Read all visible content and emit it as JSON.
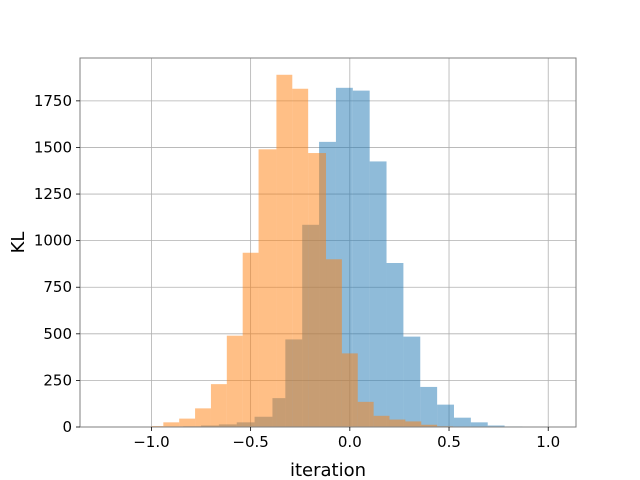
{
  "chart_data": {
    "type": "bar",
    "title": "",
    "xlabel": "iteration",
    "ylabel": "KL",
    "xlim": [
      -1.36,
      1.14
    ],
    "ylim": [
      0,
      1980
    ],
    "xticks": [
      -1.0,
      -0.5,
      0.0,
      0.5,
      1.0
    ],
    "xtick_labels": [
      "−1.0",
      "−0.5",
      "0.0",
      "0.5",
      "1.0"
    ],
    "yticks": [
      0,
      250,
      500,
      750,
      1000,
      1250,
      1500,
      1750
    ],
    "ytick_labels": [
      "0",
      "250",
      "500",
      "750",
      "1000",
      "1250",
      "1500",
      "1750"
    ],
    "grid": true,
    "alpha": 0.5,
    "series": [
      {
        "color": "#1f77b4",
        "bins": [
          {
            "x0": -1.2,
            "x1": -1.11,
            "count": 1
          },
          {
            "x0": -1.11,
            "x1": -1.02,
            "count": 1
          },
          {
            "x0": -1.02,
            "x1": -0.93,
            "count": 2
          },
          {
            "x0": -0.93,
            "x1": -0.84,
            "count": 3
          },
          {
            "x0": -0.84,
            "x1": -0.75,
            "count": 4
          },
          {
            "x0": -0.75,
            "x1": -0.66,
            "count": 8
          },
          {
            "x0": -0.66,
            "x1": -0.57,
            "count": 14
          },
          {
            "x0": -0.57,
            "x1": -0.48,
            "count": 25
          },
          {
            "x0": -0.48,
            "x1": -0.39,
            "count": 55
          },
          {
            "x0": -0.39,
            "x1": -0.325,
            "count": 155
          },
          {
            "x0": -0.325,
            "x1": -0.24,
            "count": 470
          },
          {
            "x0": -0.24,
            "x1": -0.155,
            "count": 1085
          },
          {
            "x0": -0.155,
            "x1": -0.07,
            "count": 1530
          },
          {
            "x0": -0.07,
            "x1": 0.015,
            "count": 1820
          },
          {
            "x0": 0.015,
            "x1": 0.1,
            "count": 1805
          },
          {
            "x0": 0.1,
            "x1": 0.185,
            "count": 1425
          },
          {
            "x0": 0.185,
            "x1": 0.27,
            "count": 880
          },
          {
            "x0": 0.27,
            "x1": 0.355,
            "count": 485
          },
          {
            "x0": 0.355,
            "x1": 0.44,
            "count": 215
          },
          {
            "x0": 0.44,
            "x1": 0.525,
            "count": 120
          },
          {
            "x0": 0.525,
            "x1": 0.61,
            "count": 50
          },
          {
            "x0": 0.61,
            "x1": 0.695,
            "count": 25
          },
          {
            "x0": 0.695,
            "x1": 0.78,
            "count": 8
          },
          {
            "x0": 0.78,
            "x1": 0.87,
            "count": 3
          },
          {
            "x0": 0.87,
            "x1": 0.96,
            "count": 2
          },
          {
            "x0": 0.96,
            "x1": 1.05,
            "count": 1
          }
        ]
      },
      {
        "color": "#ff7f0e",
        "bins": [
          {
            "x0": -1.0,
            "x1": -0.94,
            "count": 5
          },
          {
            "x0": -0.94,
            "x1": -0.86,
            "count": 25
          },
          {
            "x0": -0.86,
            "x1": -0.78,
            "count": 45
          },
          {
            "x0": -0.78,
            "x1": -0.7,
            "count": 100
          },
          {
            "x0": -0.7,
            "x1": -0.62,
            "count": 230
          },
          {
            "x0": -0.62,
            "x1": -0.54,
            "count": 490
          },
          {
            "x0": -0.54,
            "x1": -0.46,
            "count": 935
          },
          {
            "x0": -0.46,
            "x1": -0.37,
            "count": 1490
          },
          {
            "x0": -0.37,
            "x1": -0.29,
            "count": 1890
          },
          {
            "x0": -0.29,
            "x1": -0.21,
            "count": 1815
          },
          {
            "x0": -0.21,
            "x1": -0.12,
            "count": 1470
          },
          {
            "x0": -0.12,
            "x1": -0.04,
            "count": 900
          },
          {
            "x0": -0.04,
            "x1": 0.04,
            "count": 395
          },
          {
            "x0": 0.04,
            "x1": 0.12,
            "count": 135
          },
          {
            "x0": 0.12,
            "x1": 0.2,
            "count": 60
          },
          {
            "x0": 0.2,
            "x1": 0.28,
            "count": 40
          },
          {
            "x0": 0.28,
            "x1": 0.36,
            "count": 30
          },
          {
            "x0": 0.36,
            "x1": 0.44,
            "count": 12
          },
          {
            "x0": 0.44,
            "x1": 0.52,
            "count": 4
          },
          {
            "x0": 0.52,
            "x1": 0.6,
            "count": 2
          }
        ]
      }
    ]
  }
}
